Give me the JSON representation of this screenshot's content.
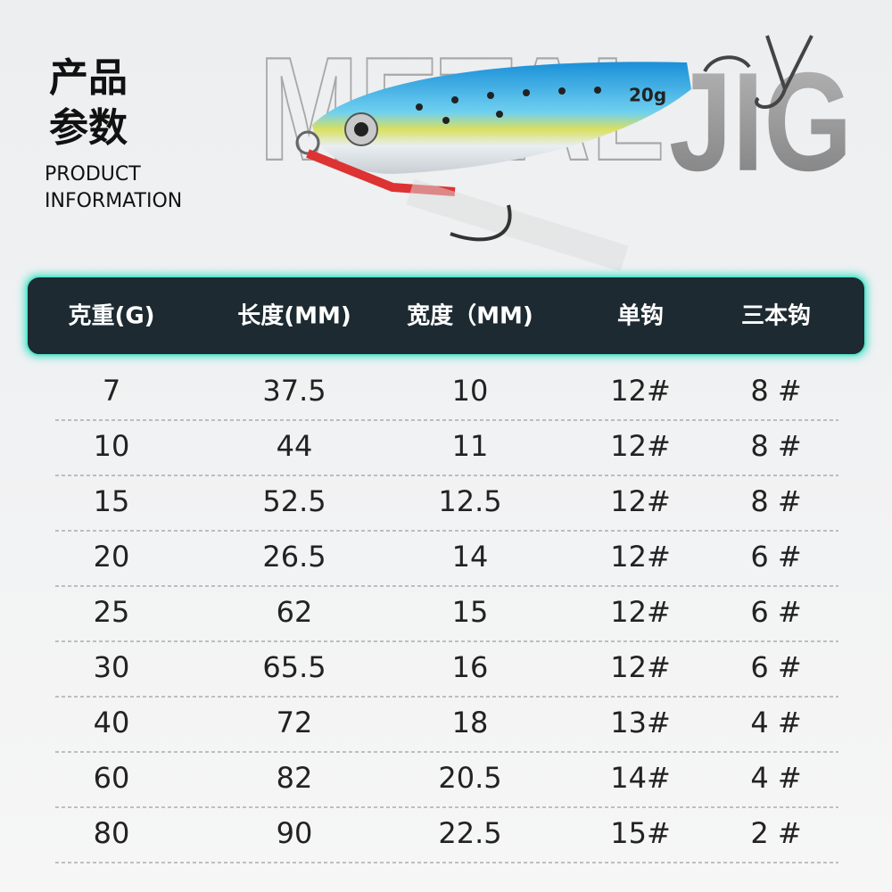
{
  "header": {
    "title_line1": "产品",
    "title_line2": "参数",
    "subtitle_line1": "PRODUCT",
    "subtitle_line2": "INFORMATION"
  },
  "banner": {
    "word1": "METAL",
    "word2": "JIG",
    "lure_label": "20g"
  },
  "table": {
    "headers": [
      "克重(G)",
      "长度(MM)",
      "宽度（MM)",
      "单钩",
      "三本钩"
    ],
    "rows": [
      [
        "7",
        "37.5",
        "10",
        "12#",
        "8 #"
      ],
      [
        "10",
        "44",
        "11",
        "12#",
        "8 #"
      ],
      [
        "15",
        "52.5",
        "12.5",
        "12#",
        "8 #"
      ],
      [
        "20",
        "26.5",
        "14",
        "12#",
        "6 #"
      ],
      [
        "25",
        "62",
        "15",
        "12#",
        "6 #"
      ],
      [
        "30",
        "65.5",
        "16",
        "12#",
        "6 #"
      ],
      [
        "40",
        "72",
        "18",
        "13#",
        "4 #"
      ],
      [
        "60",
        "82",
        "20.5",
        "14#",
        "4 #"
      ],
      [
        "80",
        "90",
        "22.5",
        "15#",
        "2 #"
      ]
    ]
  }
}
